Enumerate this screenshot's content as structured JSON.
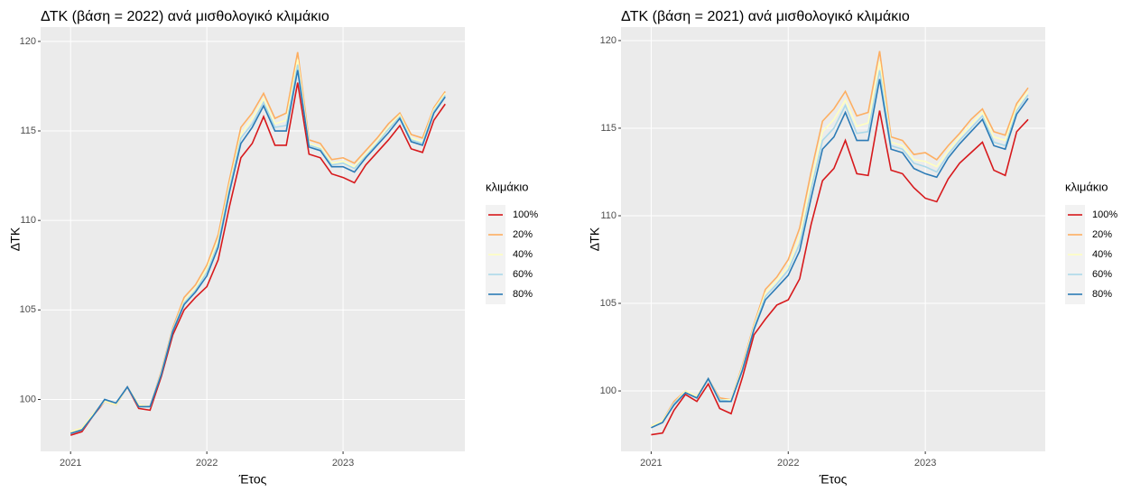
{
  "chart_data": [
    {
      "type": "line",
      "title": "ΔΤΚ (βάση = 2022) ανά μισθολογικό κλιμάκιο",
      "x_label": "Έτος",
      "y_label": "ΔΤΚ",
      "legend_title": "κλιμάκιο",
      "legend": "right",
      "grid": true,
      "x": [
        "2021-01",
        "2021-02",
        "2021-03",
        "2021-04",
        "2021-05",
        "2021-06",
        "2021-07",
        "2021-08",
        "2021-09",
        "2021-10",
        "2021-11",
        "2021-12",
        "2022-01",
        "2022-02",
        "2022-03",
        "2022-04",
        "2022-05",
        "2022-06",
        "2022-07",
        "2022-08",
        "2022-09",
        "2022-10",
        "2022-11",
        "2022-12",
        "2023-01",
        "2023-02",
        "2023-03",
        "2023-04",
        "2023-05",
        "2023-06",
        "2023-07",
        "2023-08",
        "2023-09",
        "2023-10"
      ],
      "xlim": [
        2020.78,
        2023.894
      ],
      "xticks": [
        2021,
        2022,
        2023
      ],
      "ylim": [
        97.1,
        120.8
      ],
      "yticks": [
        100,
        105,
        110,
        115,
        120
      ],
      "series": [
        {
          "name": "100%",
          "color": "#d7191c",
          "values": [
            98.0,
            98.2,
            99.1,
            99.9,
            99.7,
            100.7,
            99.5,
            99.4,
            101.3,
            103.6,
            105.0,
            105.7,
            106.3,
            107.8,
            110.8,
            113.5,
            114.3,
            115.8,
            114.2,
            114.2,
            117.7,
            113.7,
            113.5,
            112.6,
            112.4,
            112.1,
            113.1,
            113.8,
            114.5,
            115.3,
            114.0,
            113.8,
            115.6,
            116.5
          ]
        },
        {
          "name": "20%",
          "color": "#fdae61",
          "values": [
            98.2,
            98.4,
            99.2,
            99.9,
            99.7,
            100.7,
            99.7,
            99.6,
            101.6,
            104.0,
            105.7,
            106.4,
            107.5,
            109.2,
            112.3,
            115.2,
            116.0,
            117.1,
            115.7,
            116.0,
            119.4,
            114.5,
            114.3,
            113.4,
            113.5,
            113.2,
            113.9,
            114.6,
            115.4,
            116.0,
            114.8,
            114.6,
            116.3,
            117.2
          ]
        },
        {
          "name": "40%",
          "color": "#ffffbf",
          "values": [
            98.2,
            98.4,
            99.2,
            99.9,
            99.7,
            100.7,
            99.7,
            99.6,
            101.5,
            103.9,
            105.5,
            106.2,
            107.3,
            108.9,
            112.0,
            114.8,
            115.7,
            116.8,
            115.4,
            115.6,
            119.0,
            114.3,
            114.1,
            113.2,
            113.3,
            113.0,
            113.7,
            114.4,
            115.2,
            115.9,
            114.6,
            114.4,
            116.2,
            117.1
          ]
        },
        {
          "name": "60%",
          "color": "#abd9e9",
          "values": [
            98.1,
            98.3,
            99.1,
            100.0,
            99.8,
            100.7,
            99.6,
            99.6,
            101.5,
            103.9,
            105.4,
            106.1,
            107.1,
            108.7,
            111.8,
            114.6,
            115.4,
            116.6,
            115.2,
            115.3,
            118.7,
            114.2,
            114.0,
            113.1,
            113.2,
            112.9,
            113.6,
            114.3,
            115.1,
            115.8,
            114.5,
            114.3,
            116.1,
            117.0
          ]
        },
        {
          "name": "80%",
          "color": "#2c7bb6",
          "values": [
            98.1,
            98.3,
            99.1,
            100.0,
            99.8,
            100.7,
            99.6,
            99.6,
            101.4,
            103.8,
            105.3,
            106.0,
            106.9,
            108.5,
            111.6,
            114.3,
            115.2,
            116.4,
            115.0,
            115.0,
            118.4,
            114.1,
            113.9,
            113.0,
            113.0,
            112.7,
            113.5,
            114.2,
            114.9,
            115.7,
            114.4,
            114.2,
            116.0,
            116.9
          ]
        }
      ]
    },
    {
      "type": "line",
      "title": "ΔΤΚ (βάση = 2021) ανά μισθολογικό κλιμάκιο",
      "x_label": "Έτος",
      "y_label": "ΔΤΚ",
      "legend_title": "κλιμάκιο",
      "legend": "right",
      "grid": true,
      "x": [
        "2021-01",
        "2021-02",
        "2021-03",
        "2021-04",
        "2021-05",
        "2021-06",
        "2021-07",
        "2021-08",
        "2021-09",
        "2021-10",
        "2021-11",
        "2021-12",
        "2022-01",
        "2022-02",
        "2022-03",
        "2022-04",
        "2022-05",
        "2022-06",
        "2022-07",
        "2022-08",
        "2022-09",
        "2022-10",
        "2022-11",
        "2022-12",
        "2023-01",
        "2023-02",
        "2023-03",
        "2023-04",
        "2023-05",
        "2023-06",
        "2023-07",
        "2023-08",
        "2023-09",
        "2023-10"
      ],
      "xlim": [
        2020.78,
        2023.875
      ],
      "xticks": [
        2021,
        2022,
        2023
      ],
      "ylim": [
        96.55,
        120.77
      ],
      "yticks": [
        100,
        105,
        110,
        115,
        120
      ],
      "series": [
        {
          "name": "100%",
          "color": "#d7191c",
          "values": [
            97.5,
            97.6,
            98.9,
            99.8,
            99.4,
            100.4,
            99.0,
            98.7,
            100.8,
            103.2,
            104.1,
            104.9,
            105.2,
            106.4,
            109.5,
            112.0,
            112.7,
            114.3,
            112.4,
            112.3,
            116.0,
            112.6,
            112.4,
            111.6,
            111.0,
            110.8,
            112.1,
            113.0,
            113.6,
            114.2,
            112.6,
            112.3,
            114.8,
            115.5
          ]
        },
        {
          "name": "20%",
          "color": "#fdae61",
          "values": [
            98.0,
            98.3,
            99.4,
            100.0,
            99.7,
            100.7,
            99.6,
            99.5,
            101.5,
            103.8,
            105.8,
            106.5,
            107.5,
            109.3,
            112.5,
            115.4,
            116.1,
            117.1,
            115.7,
            115.9,
            119.4,
            114.5,
            114.3,
            113.5,
            113.6,
            113.2,
            114.0,
            114.7,
            115.5,
            116.1,
            114.8,
            114.6,
            116.4,
            117.3
          ]
        },
        {
          "name": "40%",
          "color": "#ffffbf",
          "values": [
            98.0,
            98.3,
            99.3,
            100.0,
            99.7,
            100.7,
            99.5,
            99.5,
            101.4,
            103.7,
            105.6,
            106.3,
            107.1,
            108.8,
            111.9,
            114.8,
            115.5,
            116.6,
            115.1,
            115.3,
            118.8,
            114.2,
            114.0,
            113.2,
            113.1,
            112.8,
            113.7,
            114.5,
            115.2,
            115.9,
            114.5,
            114.3,
            116.2,
            117.1
          ]
        },
        {
          "name": "60%",
          "color": "#abd9e9",
          "values": [
            97.9,
            98.2,
            99.3,
            99.9,
            99.6,
            100.7,
            99.5,
            99.4,
            101.3,
            103.6,
            105.4,
            106.1,
            106.9,
            108.4,
            111.5,
            114.3,
            115.0,
            116.3,
            114.7,
            114.8,
            118.3,
            114.0,
            113.8,
            113.0,
            112.8,
            112.5,
            113.5,
            114.3,
            115.0,
            115.7,
            114.2,
            114.0,
            116.0,
            116.9
          ]
        },
        {
          "name": "80%",
          "color": "#2c7bb6",
          "values": [
            97.9,
            98.2,
            99.2,
            99.9,
            99.6,
            100.7,
            99.4,
            99.4,
            101.2,
            103.5,
            105.2,
            105.9,
            106.6,
            108.0,
            111.0,
            113.8,
            114.5,
            115.9,
            114.3,
            114.3,
            117.8,
            113.8,
            113.6,
            112.7,
            112.4,
            112.2,
            113.3,
            114.1,
            114.8,
            115.5,
            114.0,
            113.8,
            115.8,
            116.7
          ]
        }
      ]
    }
  ]
}
